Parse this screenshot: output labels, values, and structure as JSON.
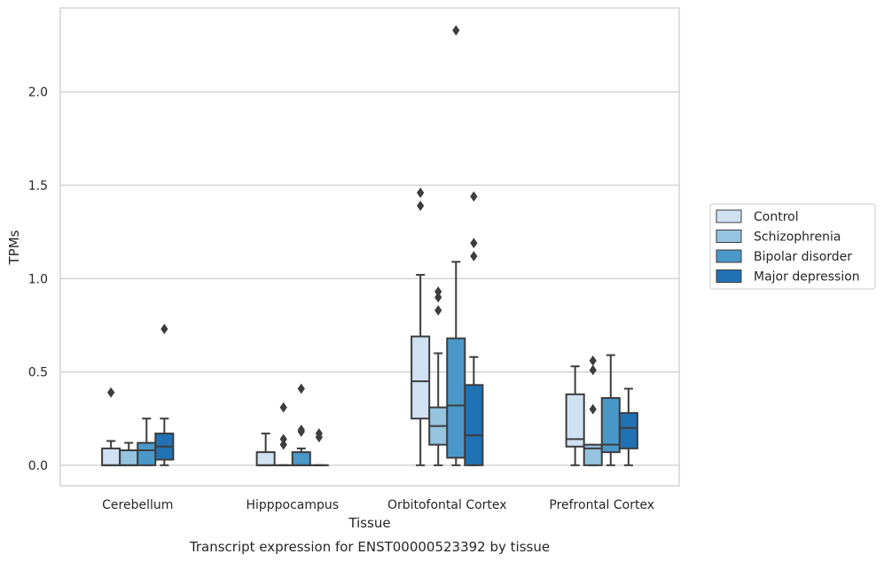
{
  "chart_data": {
    "type": "box",
    "caption": "Transcript expression for ENST00000523392 by tissue",
    "xlabel": "Tissue",
    "ylabel": "TPMs",
    "ylim": [
      -0.11,
      2.45
    ],
    "yticks": [
      0.0,
      0.5,
      1.0,
      1.5,
      2.0
    ],
    "ytick_labels": [
      "0.0",
      "0.5",
      "1.0",
      "1.5",
      "2.0"
    ],
    "grid": "horizontal",
    "legend_position": "right",
    "categories": [
      "Cerebellum",
      "Hipppocampus",
      "Orbitofontal Cortex",
      "Prefrontal Cortex"
    ],
    "series": [
      {
        "name": "Control",
        "color": "#d0e1f2",
        "boxes": [
          {
            "whislo": 0.0,
            "q1": 0.0,
            "med": 0.0,
            "q3": 0.09,
            "whishi": 0.13,
            "fliers": [
              0.39
            ]
          },
          {
            "whislo": 0.0,
            "q1": 0.0,
            "med": 0.0,
            "q3": 0.07,
            "whishi": 0.17,
            "fliers": []
          },
          {
            "whislo": 0.0,
            "q1": 0.25,
            "med": 0.45,
            "q3": 0.69,
            "whishi": 1.02,
            "fliers": [
              1.39,
              1.46
            ]
          },
          {
            "whislo": 0.0,
            "q1": 0.1,
            "med": 0.14,
            "q3": 0.38,
            "whishi": 0.53,
            "fliers": []
          }
        ]
      },
      {
        "name": "Schizophrenia",
        "color": "#94c4df",
        "boxes": [
          {
            "whislo": 0.0,
            "q1": 0.0,
            "med": 0.0,
            "q3": 0.08,
            "whishi": 0.12,
            "fliers": []
          },
          {
            "whislo": 0.0,
            "q1": 0.0,
            "med": 0.0,
            "q3": 0.0,
            "whishi": 0.0,
            "fliers": [
              0.11,
              0.14,
              0.31
            ]
          },
          {
            "whislo": 0.0,
            "q1": 0.11,
            "med": 0.21,
            "q3": 0.31,
            "whishi": 0.6,
            "fliers": [
              0.83,
              0.9,
              0.93
            ]
          },
          {
            "whislo": 0.0,
            "q1": 0.0,
            "med": 0.09,
            "q3": 0.11,
            "whishi": 0.11,
            "fliers": [
              0.3,
              0.51,
              0.56
            ]
          }
        ]
      },
      {
        "name": "Bipolar disorder",
        "color": "#4a98c9",
        "boxes": [
          {
            "whislo": 0.0,
            "q1": 0.0,
            "med": 0.08,
            "q3": 0.12,
            "whishi": 0.25,
            "fliers": []
          },
          {
            "whislo": 0.0,
            "q1": 0.0,
            "med": 0.0,
            "q3": 0.07,
            "whishi": 0.09,
            "fliers": [
              0.18,
              0.19,
              0.41
            ]
          },
          {
            "whislo": 0.0,
            "q1": 0.04,
            "med": 0.32,
            "q3": 0.68,
            "whishi": 1.09,
            "fliers": [
              2.33
            ]
          },
          {
            "whislo": 0.0,
            "q1": 0.07,
            "med": 0.11,
            "q3": 0.36,
            "whishi": 0.59,
            "fliers": []
          }
        ]
      },
      {
        "name": "Major depression",
        "color": "#2171b5",
        "boxes": [
          {
            "whislo": 0.0,
            "q1": 0.03,
            "med": 0.1,
            "q3": 0.17,
            "whishi": 0.25,
            "fliers": [
              0.73
            ]
          },
          {
            "whislo": 0.0,
            "q1": 0.0,
            "med": 0.0,
            "q3": 0.0,
            "whishi": 0.0,
            "fliers": [
              0.15,
              0.17
            ]
          },
          {
            "whislo": 0.0,
            "q1": 0.0,
            "med": 0.16,
            "q3": 0.43,
            "whishi": 0.58,
            "fliers": [
              1.12,
              1.19,
              1.44
            ]
          },
          {
            "whislo": 0.0,
            "q1": 0.09,
            "med": 0.2,
            "q3": 0.28,
            "whishi": 0.41,
            "fliers": []
          }
        ]
      }
    ]
  }
}
